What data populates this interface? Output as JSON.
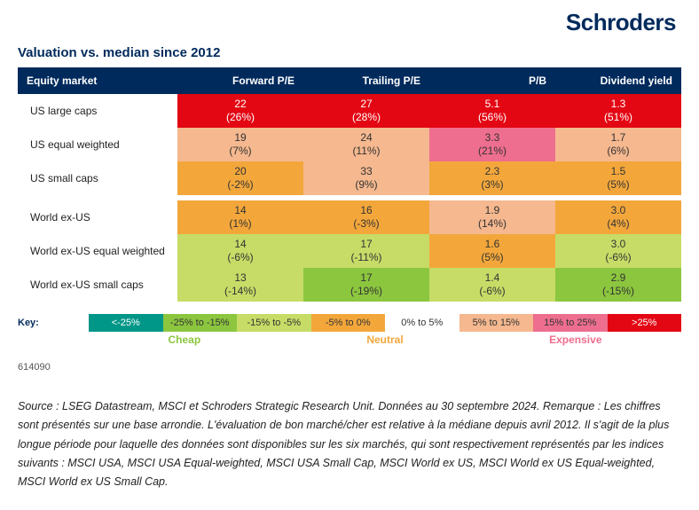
{
  "brand": "Schroders",
  "chart": {
    "title": "Valuation vs. median since 2012",
    "columns": [
      "Equity market",
      "Forward P/E",
      "Trailing P/E",
      "P/B",
      "Dividend yield"
    ],
    "groups": [
      [
        {
          "label": "US large caps",
          "cells": [
            {
              "v": "22",
              "p": "(26%)",
              "bg": "#e30613",
              "fg": "#ffffff"
            },
            {
              "v": "27",
              "p": "(28%)",
              "bg": "#e30613",
              "fg": "#ffffff"
            },
            {
              "v": "5.1",
              "p": "(56%)",
              "bg": "#e30613",
              "fg": "#ffffff"
            },
            {
              "v": "1.3",
              "p": "(51%)",
              "bg": "#e30613",
              "fg": "#ffffff"
            }
          ]
        },
        {
          "label": "US equal weighted",
          "cells": [
            {
              "v": "19",
              "p": "(7%)",
              "bg": "#f5b88f",
              "fg": "#333333"
            },
            {
              "v": "24",
              "p": "(11%)",
              "bg": "#f5b88f",
              "fg": "#333333"
            },
            {
              "v": "3.3",
              "p": "(21%)",
              "bg": "#ee6e8f",
              "fg": "#333333"
            },
            {
              "v": "1.7",
              "p": "(6%)",
              "bg": "#f5b88f",
              "fg": "#333333"
            }
          ]
        },
        {
          "label": "US small caps",
          "cells": [
            {
              "v": "20",
              "p": "(-2%)",
              "bg": "#f3a73b",
              "fg": "#333333"
            },
            {
              "v": "33",
              "p": "(9%)",
              "bg": "#f5b88f",
              "fg": "#333333"
            },
            {
              "v": "2.3",
              "p": "(3%)",
              "bg": "#f3a73b",
              "fg": "#333333"
            },
            {
              "v": "1.5",
              "p": "(5%)",
              "bg": "#f3a73b",
              "fg": "#333333"
            }
          ]
        }
      ],
      [
        {
          "label": "World ex-US",
          "cells": [
            {
              "v": "14",
              "p": "(1%)",
              "bg": "#f3a73b",
              "fg": "#333333"
            },
            {
              "v": "16",
              "p": "(-3%)",
              "bg": "#f3a73b",
              "fg": "#333333"
            },
            {
              "v": "1.9",
              "p": "(14%)",
              "bg": "#f5b88f",
              "fg": "#333333"
            },
            {
              "v": "3.0",
              "p": "(4%)",
              "bg": "#f3a73b",
              "fg": "#333333"
            }
          ]
        },
        {
          "label": "World ex-US equal weighted",
          "cells": [
            {
              "v": "14",
              "p": "(-6%)",
              "bg": "#c6dc67",
              "fg": "#333333"
            },
            {
              "v": "17",
              "p": "(-11%)",
              "bg": "#c6dc67",
              "fg": "#333333"
            },
            {
              "v": "1.6",
              "p": "(5%)",
              "bg": "#f3a73b",
              "fg": "#333333"
            },
            {
              "v": "3.0",
              "p": "(-6%)",
              "bg": "#c6dc67",
              "fg": "#333333"
            }
          ]
        },
        {
          "label": "World ex-US small caps",
          "cells": [
            {
              "v": "13",
              "p": "(-14%)",
              "bg": "#c6dc67",
              "fg": "#333333"
            },
            {
              "v": "17",
              "p": "(-19%)",
              "bg": "#8cc63f",
              "fg": "#333333"
            },
            {
              "v": "1.4",
              "p": "(-6%)",
              "bg": "#c6dc67",
              "fg": "#333333"
            },
            {
              "v": "2.9",
              "p": "(-15%)",
              "bg": "#8cc63f",
              "fg": "#333333"
            }
          ]
        }
      ]
    ],
    "key_label": "Key:",
    "key": [
      {
        "label": "<-25%",
        "bg": "#009688",
        "fg": "#ffffff"
      },
      {
        "label": "-25% to -15%",
        "bg": "#8cc63f",
        "fg": "#333333"
      },
      {
        "label": "-15% to -5%",
        "bg": "#c6dc67",
        "fg": "#333333"
      },
      {
        "label": "-5% to 0%",
        "bg": "#f3a73b",
        "fg": "#333333"
      },
      {
        "label": "0% to 5%",
        "bg": "#ffffff",
        "fg": "#333333"
      },
      {
        "label": "5% to 15%",
        "bg": "#f5b88f",
        "fg": "#333333"
      },
      {
        "label": "15% to 25%",
        "bg": "#ee6e8f",
        "fg": "#333333"
      },
      {
        "label": ">25%",
        "bg": "#e30613",
        "fg": "#ffffff"
      }
    ],
    "key_tags": {
      "cheap": {
        "label": "Cheap",
        "color": "#8cc63f"
      },
      "neutral": {
        "label": "Neutral",
        "color": "#f3a73b"
      },
      "expensive": {
        "label": "Expensive",
        "color": "#ee6e8f"
      }
    },
    "code": "614090"
  },
  "source": "Source : LSEG Datastream, MSCI et Schroders Strategic Research Unit. Données au 30 septembre 2024. Remarque : Les chiffres sont présentés sur une base arrondie. L'évaluation de bon marché/cher est relative à la médiane depuis avril 2012. Il s'agit de la plus longue période pour laquelle des données sont disponibles sur les six marchés, qui sont respectivement représentés par les indices suivants : MSCI USA, MSCI USA Equal-weighted, MSCI USA Small Cap, MSCI World ex US, MSCI World ex US Equal-weighted, MSCI World ex US Small Cap."
}
